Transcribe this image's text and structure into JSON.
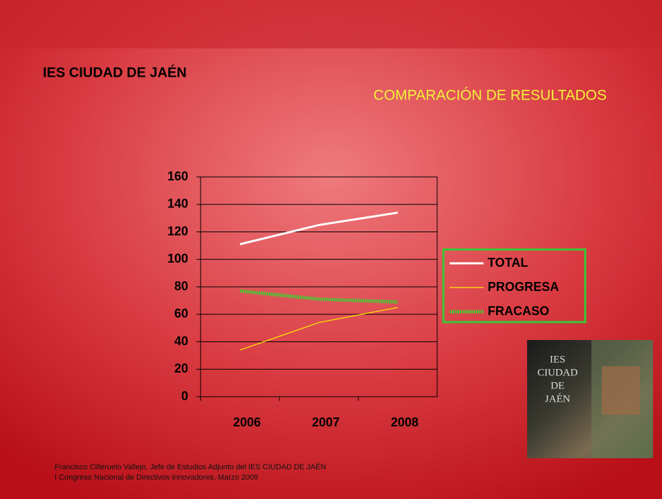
{
  "chart_data": {
    "type": "line",
    "title": "IES CIUDAD DE JAÉN",
    "subtitle": "COMPARACIÓN DE RESULTADOS",
    "categories": [
      "2006",
      "2007",
      "2008"
    ],
    "series": [
      {
        "name": "TOTAL",
        "color": "#ffffff",
        "values": [
          111,
          125,
          134
        ]
      },
      {
        "name": "PROGRESA",
        "color": "#ffee00",
        "values": [
          34,
          54,
          65
        ]
      },
      {
        "name": "FRACASO",
        "color": "#44cc33",
        "values": [
          77,
          71,
          69
        ]
      }
    ],
    "ylim": [
      0,
      160
    ],
    "yticks": [
      0,
      20,
      40,
      60,
      80,
      100,
      120,
      140,
      160
    ],
    "grid": true,
    "legend": "right"
  },
  "photo_caption": [
    "IES",
    "CIUDAD",
    "DE",
    "JAÉN"
  ],
  "footer": [
    "Francisco Cilleruelo Vallejo. Jefe de Estudios Adjunto del IES CIUDAD DE JAÉN",
    "I Congreso Nacional de Directivos Innovadores. Marzo 2009"
  ]
}
